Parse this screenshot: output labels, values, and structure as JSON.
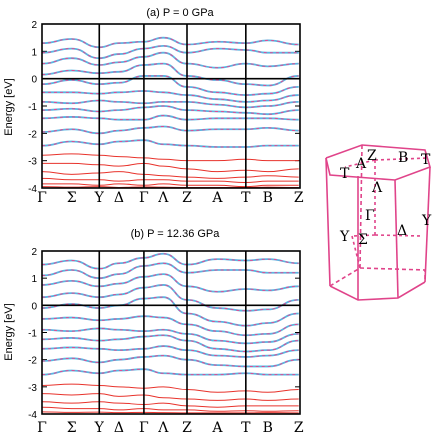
{
  "colors": {
    "red": "#e8332c",
    "blue": "#5ab4e0",
    "dash": "#e04a93",
    "bz": "#e0448a",
    "frame": "#000000"
  },
  "chart_data": [
    {
      "type": "line",
      "title": "(a) P = 0 GPa",
      "ylabel": "Energy [eV]",
      "ylim": [
        -4,
        2
      ],
      "yticks": [
        "2",
        "1",
        "0",
        "-1",
        "-2",
        "-3",
        "-4"
      ],
      "fermi_level": 0,
      "kpoints": [
        "Γ",
        "Σ",
        "Y",
        "Δ",
        "Γ",
        "Λ",
        "Z",
        "A",
        "T",
        "B",
        "Z"
      ],
      "segments": 7,
      "series": [
        {
          "y": [
            1.3,
            1.45,
            1.15,
            1.3,
            1.35,
            1.5,
            1.25,
            1.35,
            1.3,
            1.4,
            1.25
          ]
        },
        {
          "y": [
            0.95,
            1.1,
            0.75,
            0.9,
            1.1,
            1.2,
            0.95,
            1.1,
            1.05,
            0.95,
            0.95
          ]
        },
        {
          "y": [
            0.55,
            0.75,
            0.5,
            0.6,
            0.8,
            0.95,
            0.55,
            0.4,
            0.55,
            0.45,
            0.55
          ]
        },
        {
          "y": [
            0.15,
            0.3,
            0.2,
            0.25,
            0.5,
            0.55,
            0.1,
            -0.05,
            -0.2,
            -0.25,
            0.1
          ]
        },
        {
          "y": [
            -0.2,
            -0.05,
            -0.2,
            -0.15,
            0.1,
            0.1,
            -0.3,
            -0.5,
            -0.6,
            -0.55,
            -0.3
          ]
        },
        {
          "y": [
            -0.5,
            -0.5,
            -0.55,
            -0.5,
            -0.45,
            -0.5,
            -0.6,
            -0.75,
            -0.85,
            -0.8,
            -0.6
          ]
        },
        {
          "y": [
            -0.85,
            -0.9,
            -0.8,
            -0.85,
            -0.9,
            -0.85,
            -0.85,
            -0.95,
            -1.05,
            -1.0,
            -0.85
          ]
        },
        {
          "y": [
            -1.15,
            -1.1,
            -1.2,
            -1.15,
            -1.05,
            -1.0,
            -1.15,
            -1.2,
            -1.25,
            -1.3,
            -1.15
          ]
        },
        {
          "y": [
            -1.45,
            -1.4,
            -1.45,
            -1.5,
            -1.5,
            -1.35,
            -1.5,
            -1.45,
            -1.45,
            -1.45,
            -1.5
          ]
        },
        {
          "y": [
            -1.95,
            -1.85,
            -2.0,
            -1.9,
            -1.8,
            -1.75,
            -1.9,
            -1.85,
            -1.85,
            -1.8,
            -1.9
          ]
        },
        {
          "y": [
            -2.45,
            -2.3,
            -2.4,
            -2.3,
            -2.25,
            -2.4,
            -2.45,
            -2.5,
            -2.5,
            -2.45,
            -2.45
          ]
        }
      ],
      "valence": [
        {
          "y": [
            -2.8,
            -2.75,
            -2.8,
            -2.85,
            -2.9,
            -2.95,
            -3.0,
            -3.0,
            -2.95,
            -3.0,
            -3.0
          ]
        },
        {
          "y": [
            -3.1,
            -3.1,
            -3.15,
            -3.2,
            -3.1,
            -3.2,
            -3.3,
            -3.4,
            -3.35,
            -3.4,
            -3.3
          ]
        },
        {
          "y": [
            -3.4,
            -3.5,
            -3.45,
            -3.4,
            -3.5,
            -3.55,
            -3.6,
            -3.65,
            -3.6,
            -3.55,
            -3.6
          ]
        },
        {
          "y": [
            -3.65,
            -3.7,
            -3.7,
            -3.75,
            -3.7,
            -3.7,
            -3.75,
            -3.75,
            -3.8,
            -3.75,
            -3.75
          ]
        },
        {
          "y": [
            -3.85,
            -3.85,
            -3.9,
            -3.85,
            -3.9,
            -3.85,
            -3.9,
            -3.9,
            -3.95,
            -3.9,
            -3.9
          ]
        },
        {
          "y": [
            -3.95,
            -3.97,
            -3.95,
            -3.98,
            -3.96,
            -3.97,
            -3.98,
            -3.98,
            -3.98,
            -3.97,
            -3.98
          ]
        }
      ]
    },
    {
      "type": "line",
      "title": "(b) P = 12.36 GPa",
      "ylabel": "Energy [eV]",
      "ylim": [
        -4,
        2
      ],
      "yticks": [
        "2",
        "1",
        "0",
        "-1",
        "-2",
        "-3",
        "-4"
      ],
      "fermi_level": 0,
      "kpoints": [
        "Γ",
        "Σ",
        "Y",
        "Δ",
        "Γ",
        "Λ",
        "Z",
        "A",
        "T",
        "B",
        "Z"
      ],
      "segments": 7,
      "series": [
        {
          "y": [
            1.5,
            1.65,
            1.35,
            1.55,
            1.75,
            1.9,
            1.5,
            1.7,
            1.65,
            1.7,
            1.55
          ]
        },
        {
          "y": [
            1.1,
            1.3,
            1.0,
            1.15,
            1.45,
            1.55,
            1.2,
            1.3,
            1.3,
            1.2,
            1.2
          ]
        },
        {
          "y": [
            0.75,
            0.9,
            0.7,
            0.8,
            1.05,
            1.15,
            0.7,
            0.5,
            0.6,
            0.55,
            0.7
          ]
        },
        {
          "y": [
            0.3,
            0.45,
            0.3,
            0.4,
            0.65,
            0.75,
            0.2,
            -0.1,
            -0.2,
            -0.15,
            0.2
          ]
        },
        {
          "y": [
            -0.1,
            0.05,
            -0.1,
            0.0,
            0.25,
            0.3,
            -0.3,
            -0.6,
            -0.75,
            -0.65,
            -0.3
          ]
        },
        {
          "y": [
            -0.5,
            -0.45,
            -0.55,
            -0.5,
            -0.4,
            -0.45,
            -0.7,
            -0.95,
            -1.1,
            -1.05,
            -0.7
          ]
        },
        {
          "y": [
            -0.9,
            -0.95,
            -0.85,
            -0.9,
            -0.95,
            -0.9,
            -1.05,
            -1.3,
            -1.4,
            -1.35,
            -1.05
          ]
        },
        {
          "y": [
            -1.25,
            -1.2,
            -1.3,
            -1.25,
            -1.15,
            -1.1,
            -1.3,
            -1.6,
            -1.7,
            -1.65,
            -1.3
          ]
        },
        {
          "y": [
            -1.6,
            -1.55,
            -1.6,
            -1.65,
            -1.6,
            -1.5,
            -1.65,
            -1.85,
            -1.9,
            -1.85,
            -1.65
          ]
        },
        {
          "y": [
            -2.05,
            -1.95,
            -2.1,
            -2.0,
            -1.9,
            -1.85,
            -2.0,
            -2.2,
            -2.25,
            -2.25,
            -2.0
          ]
        },
        {
          "y": [
            -2.55,
            -2.4,
            -2.5,
            -2.4,
            -2.35,
            -2.5,
            -2.55,
            -2.55,
            -2.5,
            -2.55,
            -2.55
          ]
        }
      ],
      "valence": [
        {
          "y": [
            -2.95,
            -2.9,
            -2.95,
            -3.0,
            -3.05,
            -3.0,
            -3.1,
            -3.2,
            -3.15,
            -3.2,
            -3.1
          ]
        },
        {
          "y": [
            -3.25,
            -3.3,
            -3.25,
            -3.35,
            -3.3,
            -3.4,
            -3.45,
            -3.5,
            -3.45,
            -3.5,
            -3.45
          ]
        },
        {
          "y": [
            -3.55,
            -3.6,
            -3.55,
            -3.6,
            -3.65,
            -3.6,
            -3.7,
            -3.75,
            -3.7,
            -3.7,
            -3.7
          ]
        },
        {
          "y": [
            -3.75,
            -3.8,
            -3.8,
            -3.85,
            -3.8,
            -3.85,
            -3.85,
            -3.9,
            -3.88,
            -3.9,
            -3.88
          ]
        },
        {
          "y": [
            -3.92,
            -3.94,
            -3.93,
            -3.95,
            -3.94,
            -3.95,
            -3.96,
            -3.96,
            -3.96,
            -3.95,
            -3.96
          ]
        }
      ]
    }
  ],
  "brillouin_zone": {
    "labels": [
      "Z",
      "A",
      "B",
      "T",
      "T",
      "Λ",
      "Γ",
      "Y",
      "Σ",
      "Δ",
      "Y"
    ]
  }
}
